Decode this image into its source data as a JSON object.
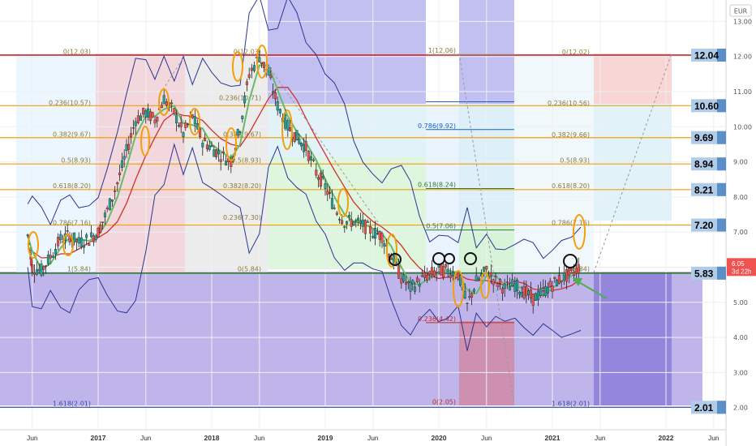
{
  "currency": "EUR",
  "chart_data": {
    "type": "candlestick",
    "instrument_currency": "EUR",
    "ylim": [
      1.4,
      13.5
    ],
    "y_ticks": [
      "13.00",
      "12.00",
      "11.00",
      "10.00",
      "9.00",
      "8.00",
      "7.00",
      "6.00",
      "5.00",
      "4.00",
      "3.00",
      "2.00"
    ],
    "x_ticks": [
      {
        "label": "Jun",
        "t": 2016.42,
        "year": false
      },
      {
        "label": "2017",
        "t": 2017.0,
        "year": true
      },
      {
        "label": "Jun",
        "t": 2017.42,
        "year": false
      },
      {
        "label": "2018",
        "t": 2018.0,
        "year": true
      },
      {
        "label": "Jun",
        "t": 2018.42,
        "year": false
      },
      {
        "label": "2019",
        "t": 2019.0,
        "year": true
      },
      {
        "label": "Jun",
        "t": 2019.42,
        "year": false
      },
      {
        "label": "2020",
        "t": 2020.0,
        "year": true
      },
      {
        "label": "Jun",
        "t": 2020.42,
        "year": false
      },
      {
        "label": "2021",
        "t": 2021.0,
        "year": true
      },
      {
        "label": "Jun",
        "t": 2021.42,
        "year": false
      },
      {
        "label": "2022",
        "t": 2022.0,
        "year": true
      },
      {
        "label": "Jun",
        "t": 2022.42,
        "year": false
      }
    ],
    "price_path": [
      [
        2016.38,
        6.9
      ],
      [
        2016.42,
        6.0
      ],
      [
        2016.5,
        5.9
      ],
      [
        2016.58,
        6.3
      ],
      [
        2016.67,
        6.8
      ],
      [
        2016.75,
        6.9
      ],
      [
        2016.83,
        6.7
      ],
      [
        2016.92,
        6.8
      ],
      [
        2017.0,
        7.0
      ],
      [
        2017.08,
        7.6
      ],
      [
        2017.17,
        8.4
      ],
      [
        2017.25,
        9.3
      ],
      [
        2017.33,
        10.2
      ],
      [
        2017.42,
        10.4
      ],
      [
        2017.5,
        10.2
      ],
      [
        2017.58,
        10.8
      ],
      [
        2017.67,
        10.4
      ],
      [
        2017.75,
        9.8
      ],
      [
        2017.83,
        10.3
      ],
      [
        2017.92,
        9.6
      ],
      [
        2018.0,
        9.4
      ],
      [
        2018.08,
        9.2
      ],
      [
        2018.17,
        9.0
      ],
      [
        2018.25,
        10.0
      ],
      [
        2018.33,
        11.5
      ],
      [
        2018.42,
        12.0
      ],
      [
        2018.5,
        11.5
      ],
      [
        2018.58,
        10.6
      ],
      [
        2018.67,
        10.0
      ],
      [
        2018.75,
        9.7
      ],
      [
        2018.83,
        9.4
      ],
      [
        2018.92,
        8.7
      ],
      [
        2019.0,
        8.3
      ],
      [
        2019.08,
        7.7
      ],
      [
        2019.17,
        7.3
      ],
      [
        2019.25,
        7.3
      ],
      [
        2019.33,
        7.2
      ],
      [
        2019.42,
        7.0
      ],
      [
        2019.5,
        6.9
      ],
      [
        2019.58,
        6.3
      ],
      [
        2019.67,
        5.7
      ],
      [
        2019.75,
        5.4
      ],
      [
        2019.83,
        5.6
      ],
      [
        2019.92,
        5.8
      ],
      [
        2020.0,
        5.9
      ],
      [
        2020.08,
        5.9
      ],
      [
        2020.17,
        5.8
      ],
      [
        2020.25,
        4.9
      ],
      [
        2020.33,
        5.6
      ],
      [
        2020.42,
        5.9
      ],
      [
        2020.5,
        5.6
      ],
      [
        2020.58,
        5.4
      ],
      [
        2020.67,
        5.5
      ],
      [
        2020.75,
        5.3
      ],
      [
        2020.83,
        5.1
      ],
      [
        2020.92,
        5.3
      ],
      [
        2021.0,
        5.5
      ],
      [
        2021.08,
        5.7
      ],
      [
        2021.17,
        5.8
      ],
      [
        2021.25,
        6.05
      ]
    ],
    "fib_levels": [
      {
        "label": "0(12.03)",
        "value": 12.03
      },
      {
        "label": "0.236(10.57)",
        "value": 10.57
      },
      {
        "label": "0.382(9.67)",
        "value": 9.67
      },
      {
        "label": "0.5(8.93)",
        "value": 8.93
      },
      {
        "label": "0.618(8.20)",
        "value": 8.2
      },
      {
        "label": "0.786(7.16)",
        "value": 7.16
      },
      {
        "label": "1(5.84)",
        "value": 5.84
      },
      {
        "label": "1.618(2.01)",
        "value": 2.01
      }
    ],
    "mid_fib_labels": [
      {
        "label": "0(12.03)",
        "value": 12.03
      },
      {
        "label": "0.236(10.71)",
        "value": 10.71
      },
      {
        "label": "0.382(9.67)",
        "value": 9.67
      },
      {
        "label": "0.5(8.93)",
        "value": 8.93
      },
      {
        "label": "0.382(8.20)",
        "value": 8.2
      },
      {
        "label": "0.236(7.30)",
        "value": 7.3
      },
      {
        "label": "0(5.84)",
        "value": 5.84
      }
    ],
    "retrace_fib_labels": [
      {
        "label": "1(12.06)",
        "value": 12.06
      },
      {
        "label": "0.786(9.92)",
        "value": 9.92
      },
      {
        "label": "0.618(8.24)",
        "value": 8.24
      },
      {
        "label": "0.5(7.06)",
        "value": 7.06
      },
      {
        "label": "0.236(4.42)",
        "value": 4.42
      },
      {
        "label": "0(2.05)",
        "value": 2.05
      }
    ],
    "right_fib_labels": [
      {
        "label": "0(12.02)",
        "value": 12.02
      },
      {
        "label": "0.236(10.56)",
        "value": 10.56
      },
      {
        "label": "0.382(9.66)",
        "value": 9.66
      },
      {
        "label": "0.5(8.93)",
        "value": 8.93
      },
      {
        "label": "0.618(8.20)",
        "value": 8.2
      },
      {
        "label": "0.786(7.16)",
        "value": 7.16
      },
      {
        "label": "1(5.84)",
        "value": 5.84
      },
      {
        "label": "1.618(2.01)",
        "value": 2.01
      }
    ],
    "key_levels": [
      {
        "label": "12.04",
        "value": 12.04,
        "line_color": "#c62828"
      },
      {
        "label": "10.60",
        "value": 10.6,
        "line_color": "#f59e0b"
      },
      {
        "label": "9.69",
        "value": 9.69,
        "line_color": "#f59e0b"
      },
      {
        "label": "8.94",
        "value": 8.94,
        "line_color": "#f59e0b"
      },
      {
        "label": "8.21",
        "value": 8.21,
        "line_color": "#f59e0b"
      },
      {
        "label": "7.20",
        "value": 7.2,
        "line_color": "#f59e0b"
      },
      {
        "label": "5.83",
        "value": 5.83,
        "line_color": "#2e7d32"
      },
      {
        "label": "2.01",
        "value": 2.01,
        "line_color": "#3949ab"
      }
    ],
    "last_price": {
      "value": "6.05",
      "countdown": "3d 22h",
      "color": "#ef5350"
    },
    "colors": {
      "bull": "#26a69a",
      "bear": "#ef5350",
      "ma_fast": "#66bb6a",
      "ma_slow": "#d32f2f",
      "bollinger": "#283593",
      "annotation": "#f59e0b",
      "arrow": "#4caf50"
    }
  }
}
